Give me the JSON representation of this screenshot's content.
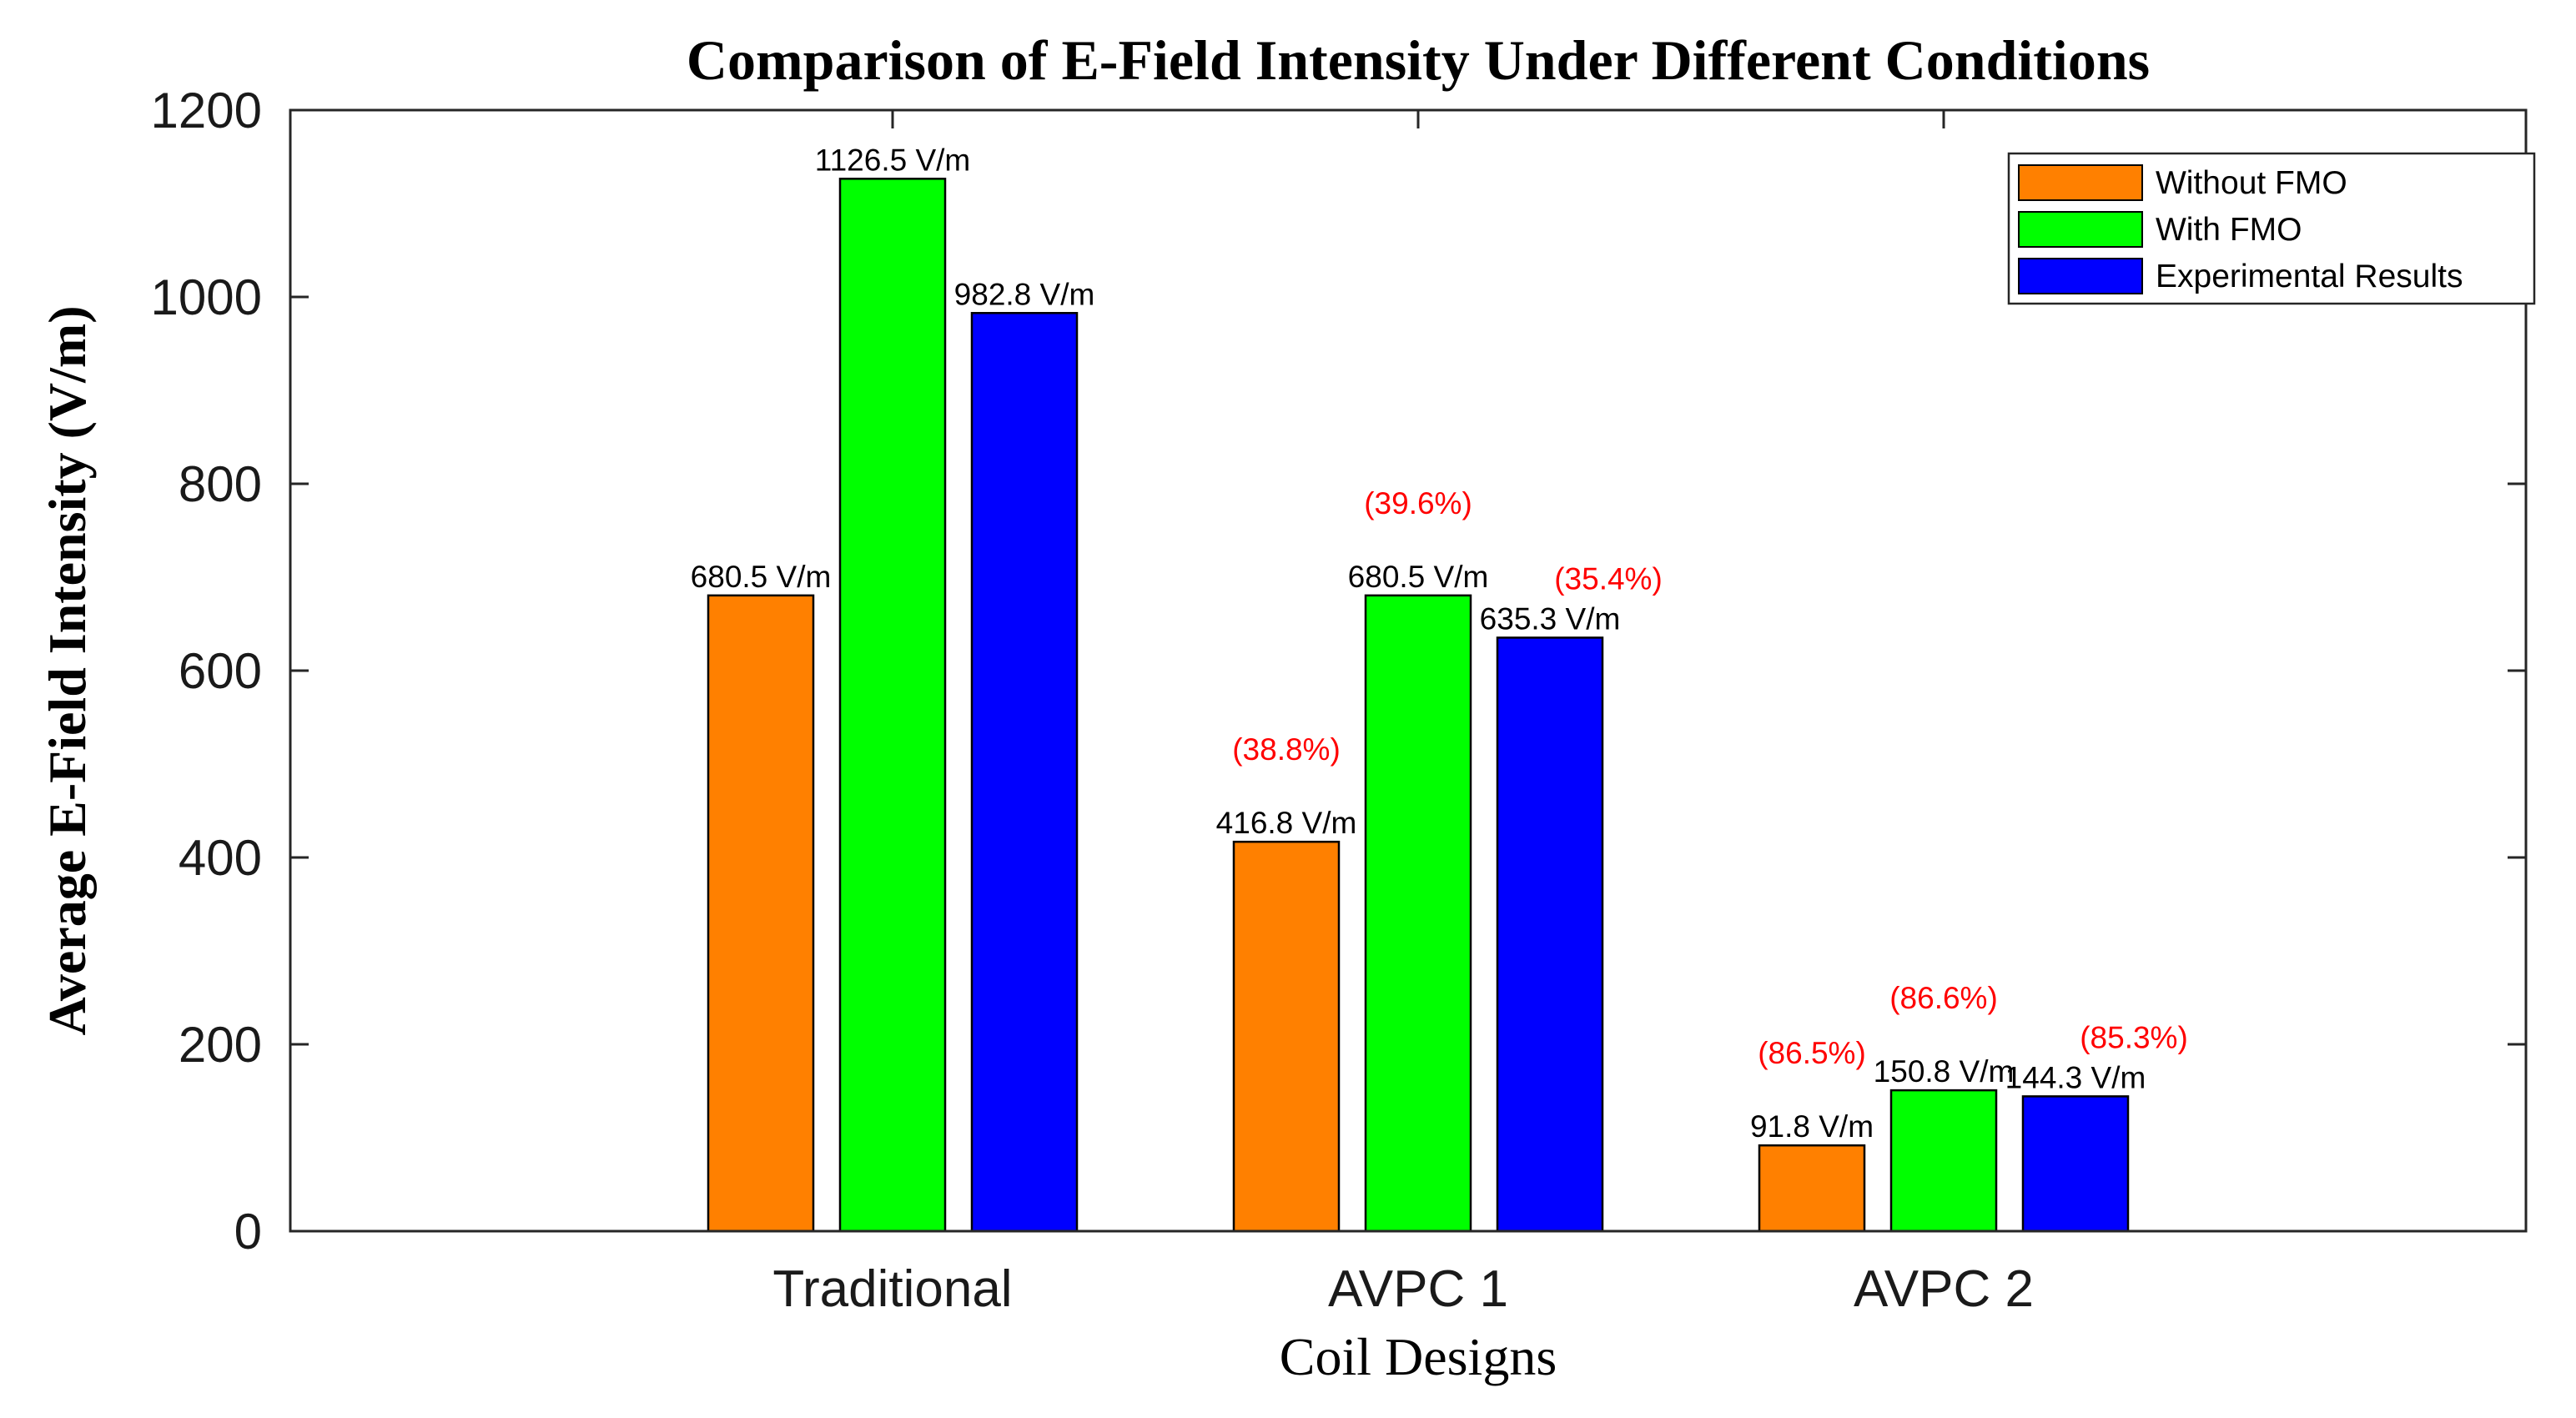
{
  "chart_data": {
    "type": "bar",
    "title": "Comparison of E-Field Intensity Under Different Conditions",
    "xlabel": "Coil Designs",
    "ylabel": "Average E-Field Intensity (V/m)",
    "ylim": [
      0,
      1200
    ],
    "yticks": [
      0,
      200,
      400,
      600,
      800,
      1000,
      1200
    ],
    "categories": [
      "Traditional",
      "AVPC 1",
      "AVPC 2"
    ],
    "series": [
      {
        "name": "Without FMO",
        "color": "#ff8000",
        "values": [
          680.5,
          416.8,
          91.8
        ],
        "labels": [
          "680.5 V/m",
          "416.8 V/m",
          "91.8 V/m"
        ],
        "annotations": [
          "",
          "(38.8%)",
          "(86.5%)"
        ]
      },
      {
        "name": "With FMO",
        "color": "#00ff00",
        "values": [
          1126.5,
          680.5,
          150.8
        ],
        "labels": [
          "1126.5 V/m",
          "680.5 V/m",
          "150.8 V/m"
        ],
        "annotations": [
          "",
          "(39.6%)",
          "(86.6%)"
        ]
      },
      {
        "name": "Experimental Results",
        "color": "#0000ff",
        "values": [
          982.8,
          635.3,
          144.3
        ],
        "labels": [
          "982.8 V/m",
          "635.3 V/m",
          "144.3 V/m"
        ],
        "annotations": [
          "",
          "(35.4%)",
          "(85.3%)"
        ]
      }
    ],
    "annotation_color": "#ff0000",
    "legend": "top-right",
    "grid": false
  }
}
